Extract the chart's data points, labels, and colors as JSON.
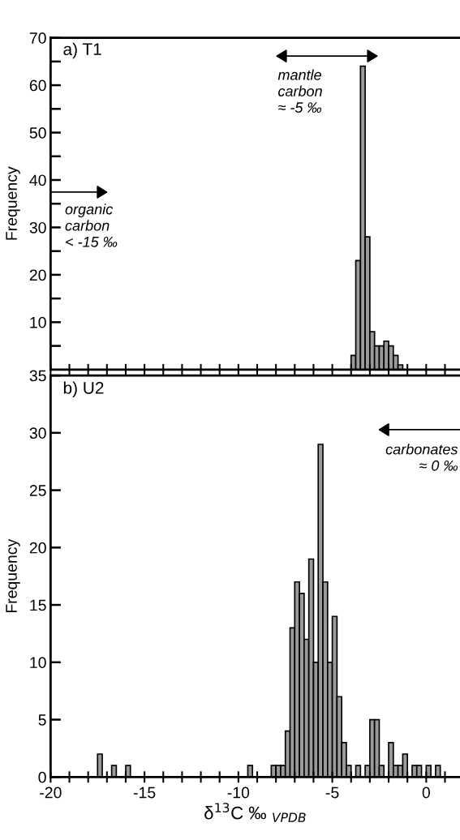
{
  "chart_data": [
    {
      "type": "histogram",
      "title": "a) T1",
      "ylabel": "Frequency",
      "color": "#9a9a9a",
      "bins": [
        -4.0,
        -3.75,
        -3.5,
        -3.25,
        -3.0,
        -2.75,
        -2.5,
        -2.25,
        -2.0,
        -1.75,
        -1.5,
        -1.25
      ],
      "values": [
        3,
        23,
        64,
        28,
        8,
        5,
        5,
        6,
        5,
        3,
        1
      ],
      "xlim": [
        -20,
        1.8
      ],
      "ylim": [
        0,
        70
      ],
      "xticks": [
        {
          "value": -20,
          "label": null
        },
        {
          "value": -19,
          "label": null
        },
        {
          "value": -18,
          "label": null
        },
        {
          "value": -17,
          "label": null
        },
        {
          "value": -16,
          "label": null
        },
        {
          "value": -15,
          "label": null
        },
        {
          "value": -14,
          "label": null
        },
        {
          "value": -13,
          "label": null
        },
        {
          "value": -12,
          "label": null
        },
        {
          "value": -11,
          "label": null
        },
        {
          "value": -10,
          "label": null
        },
        {
          "value": -9,
          "label": null
        },
        {
          "value": -8,
          "label": null
        },
        {
          "value": -7,
          "label": null
        },
        {
          "value": -6,
          "label": null
        },
        {
          "value": -5,
          "label": null
        },
        {
          "value": -4,
          "label": null
        },
        {
          "value": -3,
          "label": null
        },
        {
          "value": -2,
          "label": null
        },
        {
          "value": -1,
          "label": null
        },
        {
          "value": 0,
          "label": null
        },
        {
          "value": 1,
          "label": null
        }
      ],
      "yticks": [
        {
          "value": 5,
          "label": null
        },
        10,
        {
          "value": 15,
          "label": null
        },
        20,
        {
          "value": 25,
          "label": null
        },
        30,
        {
          "value": 35,
          "label": null
        },
        40,
        {
          "value": 45,
          "label": null
        },
        50,
        {
          "value": 55,
          "label": null
        },
        60,
        {
          "value": 65,
          "label": null
        },
        70
      ],
      "tick_labels": "y",
      "annotations": [
        "mantle\ncarbon\n≈ -5 ‰",
        "organic\ncarbon\n< -15 ‰"
      ]
    },
    {
      "type": "histogram",
      "title": "b) U2",
      "ylabel": "Frequency",
      "xlabel": "δ$^{13}$C ‰ $_{VPDB}$",
      "color": "#9a9a9a",
      "bins": [
        -17.5,
        -17.25,
        -17.0,
        -16.75,
        -16.5,
        -16.25,
        -16.0,
        -15.75,
        -15.5,
        -15.25,
        -15.0,
        -14.75,
        -14.5,
        -14.25,
        -14.0,
        -13.75,
        -13.5,
        -13.25,
        -13.0,
        -12.75,
        -12.5,
        -12.25,
        -12.0,
        -11.75,
        -11.5,
        -11.25,
        -11.0,
        -10.75,
        -10.5,
        -10.25,
        -10.0,
        -9.75,
        -9.5,
        -9.25,
        -9.0,
        -8.75,
        -8.5,
        -8.25,
        -8.0,
        -7.75,
        -7.5,
        -7.25,
        -7.0,
        -6.75,
        -6.5,
        -6.25,
        -6.0,
        -5.75,
        -5.5,
        -5.25,
        -5.0,
        -4.75,
        -4.5,
        -4.25,
        -4.0,
        -3.75,
        -3.5,
        -3.25,
        -3.0,
        -2.75,
        -2.5,
        -2.25,
        -2.0,
        -1.75,
        -1.5,
        -1.25,
        -1.0,
        -0.75,
        -0.5,
        -0.25,
        0.0,
        0.25,
        0.5,
        0.75
      ],
      "values": [
        2,
        0,
        0,
        1,
        0,
        0,
        1,
        0,
        0,
        0,
        0,
        0,
        0,
        0,
        0,
        0,
        0,
        0,
        0,
        0,
        0,
        0,
        0,
        0,
        0,
        0,
        0,
        0,
        0,
        0,
        0,
        0,
        1,
        0,
        0,
        0,
        0,
        1,
        1,
        1,
        4,
        13,
        17,
        16,
        12,
        19,
        10,
        29,
        17,
        10,
        14,
        7,
        3,
        1,
        0,
        1,
        0,
        1,
        5,
        5,
        1,
        0,
        3,
        1,
        1,
        2,
        0,
        1,
        1,
        0,
        1,
        0,
        1
      ],
      "xlim": [
        -20,
        1.8
      ],
      "ylim": [
        0,
        35
      ],
      "xticks": [
        -20,
        {
          "value": -19,
          "label": null
        },
        {
          "value": -18,
          "label": null
        },
        {
          "value": -17,
          "label": null
        },
        {
          "value": -16,
          "label": null
        },
        -15,
        {
          "value": -14,
          "label": null
        },
        {
          "value": -13,
          "label": null
        },
        {
          "value": -12,
          "label": null
        },
        {
          "value": -11,
          "label": null
        },
        -10,
        {
          "value": -9,
          "label": null
        },
        {
          "value": -8,
          "label": null
        },
        {
          "value": -7,
          "label": null
        },
        {
          "value": -6,
          "label": null
        },
        -5,
        {
          "value": -4,
          "label": null
        },
        {
          "value": -3,
          "label": null
        },
        {
          "value": -2,
          "label": null
        },
        {
          "value": -1,
          "label": null
        },
        0,
        {
          "value": 1,
          "label": null
        }
      ],
      "yticks": [
        0,
        5,
        10,
        15,
        20,
        25,
        30,
        35
      ],
      "annotations": [
        "carbonates\n≈ 0 ‰"
      ]
    }
  ]
}
